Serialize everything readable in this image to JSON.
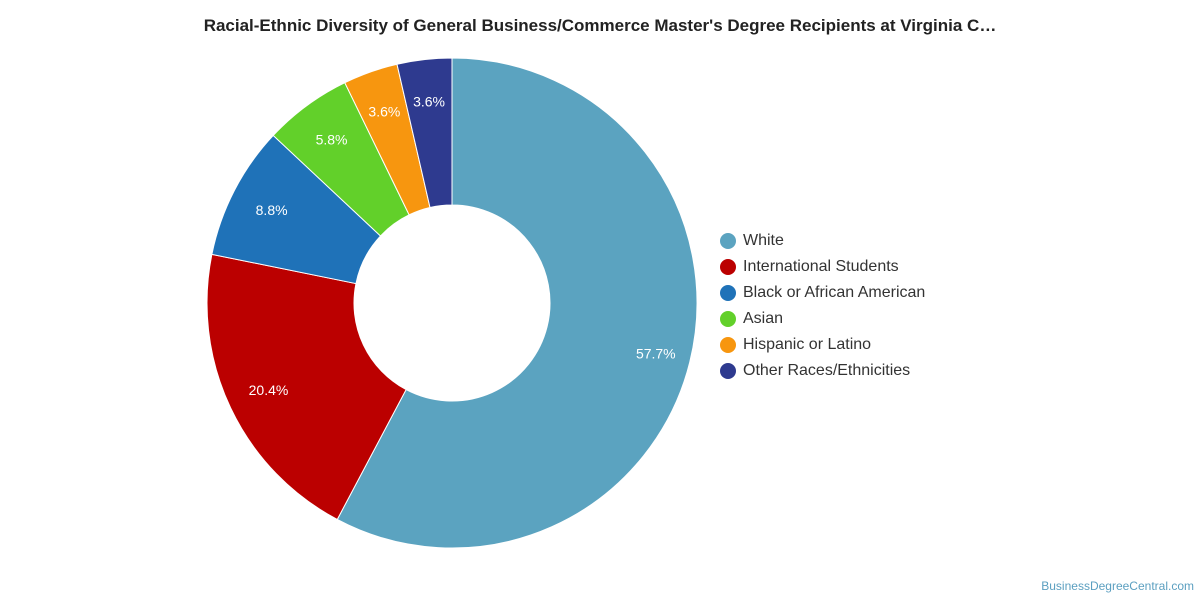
{
  "chart_data": {
    "type": "pie",
    "donut": true,
    "title": "Racial-Ethnic Diversity of General Business/Commerce Master's Degree Recipients at Virginia C…",
    "categories": [
      "White",
      "International Students",
      "Black or African American",
      "Asian",
      "Hispanic or Latino",
      "Other Races/Ethnicities"
    ],
    "values": [
      57.7,
      20.4,
      8.8,
      5.8,
      3.6,
      3.6
    ],
    "value_labels": [
      "57.7%",
      "20.4%",
      "8.8%",
      "5.8%",
      "3.6%",
      "3.6%"
    ],
    "colors": [
      "#5ba3c0",
      "#bb0000",
      "#1f72b8",
      "#62d02a",
      "#f7960f",
      "#2e3a8f"
    ],
    "legend_position": "right"
  },
  "credit": "BusinessDegreeCentral.com"
}
